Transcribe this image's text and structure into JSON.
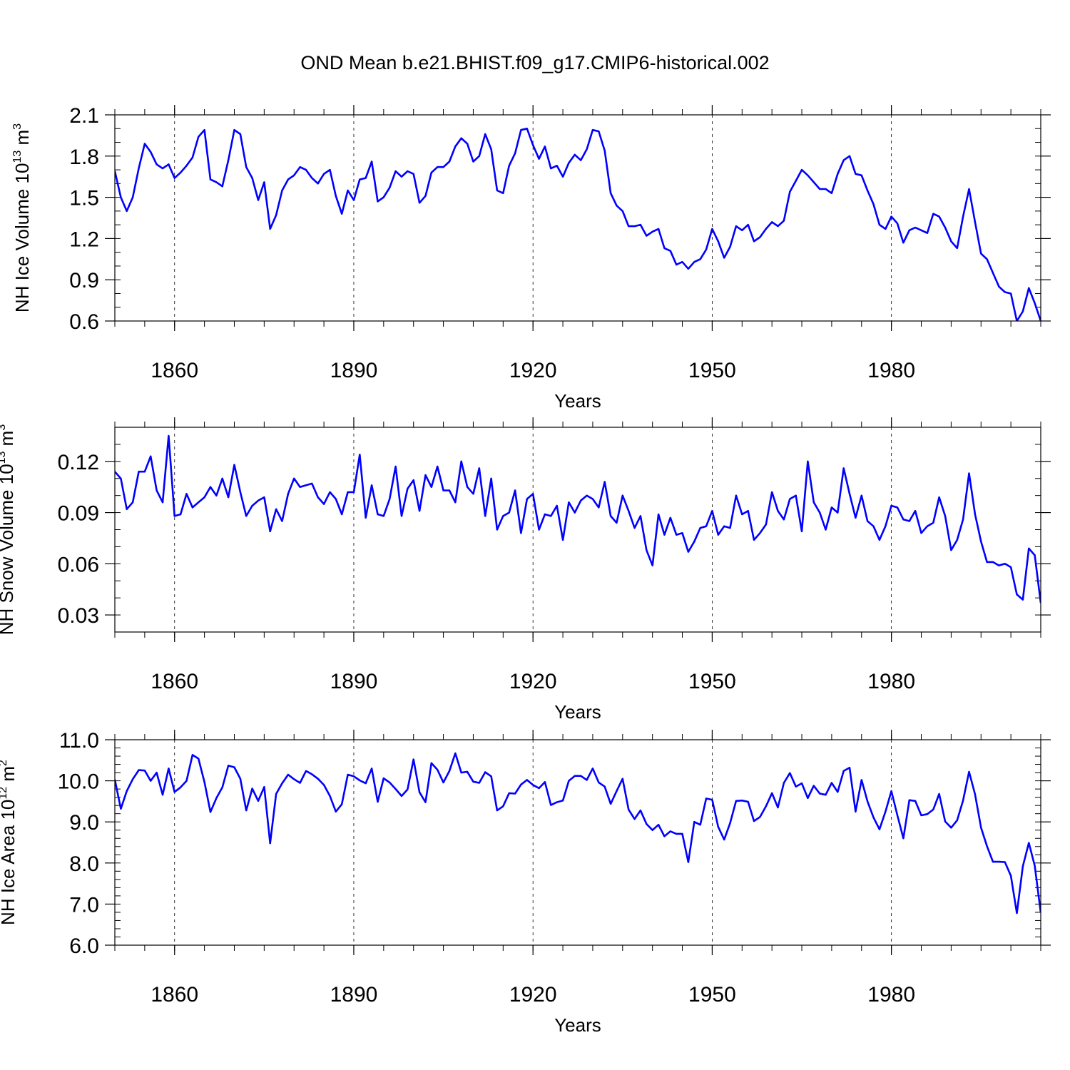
{
  "figure_title": "OND Mean b.e21.BHIST.f09_g17.CMIP6-historical.002",
  "colors": {
    "series": "#0000ff",
    "axes": "#000000",
    "grid": "#000000"
  },
  "chart_data": [
    {
      "type": "line",
      "xlabel": "Years",
      "ylabel": {
        "main": "NH Ice Volume 10",
        "sup1": "13",
        "unit": " m",
        "sup2": "3"
      },
      "xlim": [
        1850,
        2005
      ],
      "ylim": [
        0.6,
        2.1
      ],
      "yticks": [
        0.6,
        0.9,
        1.2,
        1.5,
        1.8,
        2.1
      ],
      "ytick_labels": [
        "0.6",
        "0.9",
        "1.2",
        "1.5",
        "1.8",
        "2.1"
      ],
      "yminor": 0.1,
      "xticks": [
        1860,
        1890,
        1920,
        1950,
        1980
      ],
      "xtick_labels": [
        "1860",
        "1890",
        "1920",
        "1950",
        "1980"
      ],
      "x_start": 1850,
      "x_step": 1,
      "series": [
        {
          "name": "NH Ice Volume",
          "values": [
            1.69,
            1.5,
            1.4,
            1.5,
            1.71,
            1.89,
            1.83,
            1.74,
            1.71,
            1.74,
            1.64,
            1.68,
            1.73,
            1.79,
            1.94,
            1.99,
            1.63,
            1.61,
            1.58,
            1.77,
            1.99,
            1.96,
            1.72,
            1.64,
            1.48,
            1.61,
            1.27,
            1.37,
            1.55,
            1.63,
            1.66,
            1.72,
            1.7,
            1.64,
            1.6,
            1.67,
            1.7,
            1.51,
            1.38,
            1.55,
            1.48,
            1.63,
            1.64,
            1.76,
            1.47,
            1.5,
            1.57,
            1.69,
            1.65,
            1.69,
            1.67,
            1.46,
            1.51,
            1.68,
            1.72,
            1.72,
            1.76,
            1.87,
            1.93,
            1.89,
            1.76,
            1.8,
            1.96,
            1.85,
            1.55,
            1.53,
            1.73,
            1.82,
            1.99,
            2.0,
            1.88,
            1.78,
            1.87,
            1.71,
            1.73,
            1.65,
            1.75,
            1.81,
            1.77,
            1.85,
            1.99,
            1.98,
            1.84,
            1.53,
            1.44,
            1.4,
            1.29,
            1.29,
            1.3,
            1.22,
            1.25,
            1.27,
            1.13,
            1.11,
            1.01,
            1.03,
            0.98,
            1.03,
            1.05,
            1.12,
            1.27,
            1.18,
            1.06,
            1.14,
            1.29,
            1.26,
            1.3,
            1.18,
            1.21,
            1.27,
            1.32,
            1.29,
            1.33,
            1.54,
            1.62,
            1.7,
            1.66,
            1.61,
            1.56,
            1.56,
            1.53,
            1.67,
            1.77,
            1.8,
            1.67,
            1.66,
            1.55,
            1.45,
            1.3,
            1.27,
            1.36,
            1.31,
            1.17,
            1.26,
            1.28,
            1.26,
            1.24,
            1.38,
            1.36,
            1.28,
            1.18,
            1.13,
            1.36,
            1.56,
            1.32,
            1.09,
            1.05,
            0.95,
            0.85,
            0.81,
            0.8,
            0.6,
            0.67,
            0.84,
            0.73,
            0.6
          ]
        }
      ]
    },
    {
      "type": "line",
      "xlabel": "Years",
      "ylabel": {
        "main": "NH Snow Volume 10",
        "sup1": "13",
        "unit": " m",
        "sup2": "3"
      },
      "xlim": [
        1850,
        2005
      ],
      "ylim": [
        0.02,
        0.14
      ],
      "yticks": [
        0.03,
        0.06,
        0.09,
        0.12
      ],
      "ytick_labels": [
        "0.03",
        "0.06",
        "0.09",
        "0.12"
      ],
      "yminor": 0.01,
      "xticks": [
        1860,
        1890,
        1920,
        1950,
        1980
      ],
      "xtick_labels": [
        "1860",
        "1890",
        "1920",
        "1950",
        "1980"
      ],
      "x_start": 1850,
      "x_step": 1,
      "series": [
        {
          "name": "NH Snow Volume",
          "values": [
            0.114,
            0.11,
            0.092,
            0.096,
            0.114,
            0.114,
            0.123,
            0.103,
            0.096,
            0.135,
            0.088,
            0.089,
            0.101,
            0.093,
            0.096,
            0.099,
            0.105,
            0.1,
            0.11,
            0.099,
            0.118,
            0.102,
            0.088,
            0.094,
            0.097,
            0.099,
            0.079,
            0.092,
            0.085,
            0.101,
            0.11,
            0.105,
            0.106,
            0.107,
            0.099,
            0.095,
            0.102,
            0.098,
            0.089,
            0.102,
            0.102,
            0.124,
            0.087,
            0.106,
            0.089,
            0.088,
            0.098,
            0.117,
            0.088,
            0.104,
            0.109,
            0.091,
            0.112,
            0.105,
            0.117,
            0.103,
            0.103,
            0.096,
            0.12,
            0.105,
            0.101,
            0.116,
            0.088,
            0.11,
            0.08,
            0.088,
            0.09,
            0.103,
            0.078,
            0.098,
            0.101,
            0.08,
            0.089,
            0.088,
            0.094,
            0.074,
            0.096,
            0.09,
            0.097,
            0.1,
            0.098,
            0.093,
            0.108,
            0.088,
            0.084,
            0.1,
            0.091,
            0.081,
            0.088,
            0.068,
            0.059,
            0.089,
            0.077,
            0.087,
            0.077,
            0.078,
            0.067,
            0.073,
            0.081,
            0.082,
            0.091,
            0.077,
            0.082,
            0.081,
            0.1,
            0.089,
            0.091,
            0.074,
            0.078,
            0.083,
            0.102,
            0.091,
            0.086,
            0.098,
            0.1,
            0.079,
            0.12,
            0.096,
            0.09,
            0.08,
            0.093,
            0.09,
            0.116,
            0.101,
            0.087,
            0.1,
            0.085,
            0.082,
            0.074,
            0.082,
            0.094,
            0.093,
            0.086,
            0.085,
            0.091,
            0.078,
            0.082,
            0.084,
            0.099,
            0.088,
            0.068,
            0.074,
            0.086,
            0.113,
            0.089,
            0.073,
            0.061,
            0.061,
            0.059,
            0.06,
            0.058,
            0.042,
            0.039,
            0.069,
            0.065,
            0.037
          ]
        }
      ]
    },
    {
      "type": "line",
      "xlabel": "Years",
      "ylabel": {
        "main": "NH Ice Area 10",
        "sup1": "12",
        "unit": " m",
        "sup2": "2"
      },
      "xlim": [
        1850,
        2005
      ],
      "ylim": [
        6.0,
        11.0
      ],
      "yticks": [
        6.0,
        7.0,
        8.0,
        9.0,
        10.0,
        11.0
      ],
      "ytick_labels": [
        "6.0",
        "7.0",
        "8.0",
        "9.0",
        "10.0",
        "11.0"
      ],
      "yminor": 0.2,
      "xticks": [
        1860,
        1890,
        1920,
        1950,
        1980
      ],
      "xtick_labels": [
        "1860",
        "1890",
        "1920",
        "1950",
        "1980"
      ],
      "x_start": 1850,
      "x_step": 1,
      "series": [
        {
          "name": "NH Ice Area",
          "values": [
            10.03,
            9.32,
            9.75,
            10.04,
            10.26,
            10.25,
            10.0,
            10.2,
            9.66,
            10.3,
            9.73,
            9.84,
            10.0,
            10.63,
            10.54,
            9.97,
            9.24,
            9.58,
            9.84,
            10.37,
            10.33,
            10.05,
            9.28,
            9.81,
            9.51,
            9.85,
            8.48,
            9.68,
            9.94,
            10.15,
            10.04,
            9.95,
            10.24,
            10.16,
            10.05,
            9.9,
            9.63,
            9.25,
            9.43,
            10.15,
            10.11,
            10.01,
            9.94,
            10.3,
            9.49,
            10.06,
            9.96,
            9.8,
            9.63,
            9.79,
            10.52,
            9.72,
            9.48,
            10.43,
            10.27,
            9.96,
            10.24,
            10.67,
            10.2,
            10.22,
            9.98,
            9.95,
            10.21,
            10.11,
            9.28,
            9.38,
            9.7,
            9.69,
            9.91,
            10.02,
            9.9,
            9.82,
            9.97,
            9.41,
            9.48,
            9.52,
            10.0,
            10.12,
            10.12,
            10.02,
            10.3,
            9.96,
            9.86,
            9.44,
            9.75,
            10.05,
            9.3,
            9.07,
            9.28,
            8.95,
            8.8,
            8.93,
            8.65,
            8.77,
            8.71,
            8.71,
            8.02,
            9.0,
            8.93,
            9.57,
            9.54,
            8.88,
            8.57,
            8.97,
            9.51,
            9.52,
            9.49,
            9.02,
            9.12,
            9.38,
            9.7,
            9.35,
            9.95,
            10.19,
            9.86,
            9.94,
            9.58,
            9.88,
            9.69,
            9.66,
            9.95,
            9.73,
            10.24,
            10.32,
            9.25,
            10.02,
            9.5,
            9.11,
            8.82,
            9.25,
            9.75,
            9.16,
            8.6,
            9.53,
            9.51,
            9.16,
            9.19,
            9.3,
            9.68,
            9.01,
            8.86,
            9.04,
            9.52,
            10.22,
            9.67,
            8.86,
            8.41,
            8.03,
            8.03,
            8.02,
            7.69,
            6.78,
            7.92,
            8.49,
            7.93,
            6.79
          ]
        }
      ]
    }
  ]
}
